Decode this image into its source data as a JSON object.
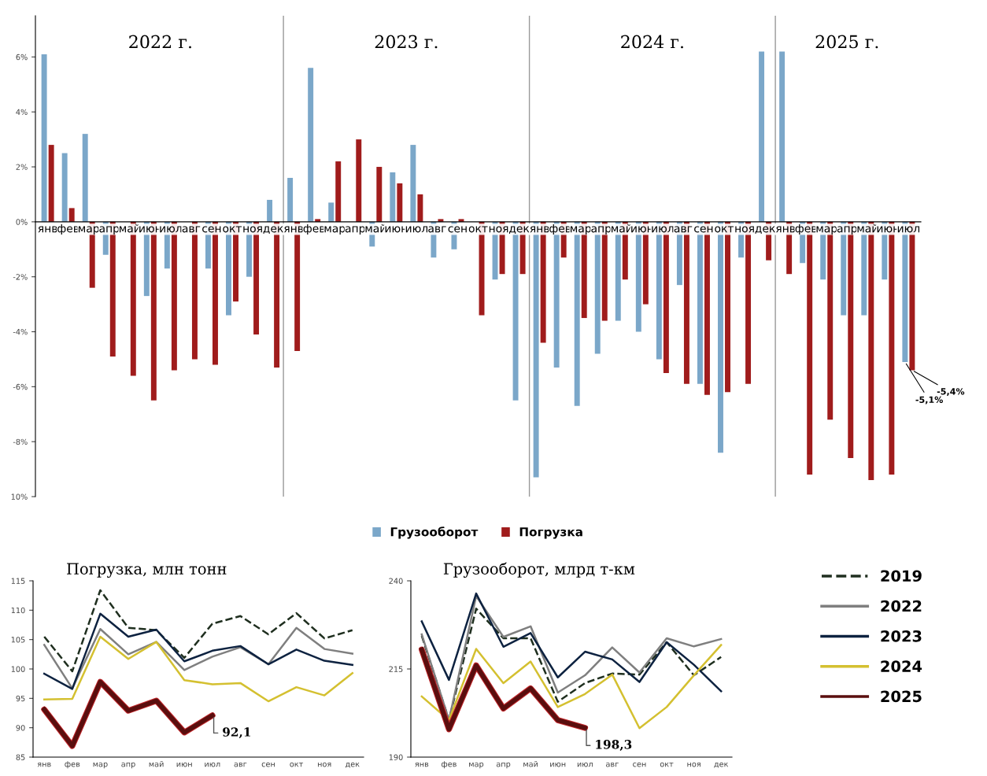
{
  "chart_data": [
    {
      "type": "bar",
      "categories": [
        "янв",
        "фев",
        "мар",
        "апр",
        "май",
        "июн",
        "июл",
        "авг",
        "сен",
        "окт",
        "ноя",
        "дек",
        "янв",
        "фев",
        "мар",
        "апр",
        "май",
        "июн",
        "июл",
        "авг",
        "сен",
        "окт",
        "ноя",
        "дек",
        "янв",
        "фев",
        "мар",
        "апр",
        "май",
        "июн",
        "июл",
        "авг",
        "сен",
        "окт",
        "ноя",
        "дек",
        "янв",
        "фев",
        "мар",
        "апр",
        "май",
        "июн",
        "июл"
      ],
      "series": [
        {
          "name": "Грузооборот",
          "color": "#7ba7c9",
          "values": [
            6.1,
            2.5,
            3.2,
            -1.2,
            null,
            -2.7,
            -1.7,
            null,
            -1.7,
            -3.4,
            -2.0,
            0.8,
            1.6,
            5.6,
            0.7,
            0.0,
            -0.9,
            1.8,
            2.8,
            -1.3,
            -1.0,
            null,
            -2.1,
            -6.5,
            -9.3,
            -5.3,
            -6.7,
            -4.8,
            -3.6,
            -4.0,
            -5.0,
            -2.3,
            -5.9,
            -8.4,
            -1.3,
            6.2,
            6.2,
            -1.5,
            -2.1,
            -3.4,
            -3.4,
            -2.1,
            -5.1
          ],
          "value_labels": [
            null,
            null,
            null,
            null,
            null,
            null,
            null,
            null,
            null,
            null,
            null,
            null,
            null,
            null,
            null,
            null,
            null,
            null,
            null,
            null,
            null,
            null,
            null,
            null,
            null,
            null,
            null,
            null,
            null,
            null,
            null,
            null,
            null,
            null,
            null,
            null,
            null,
            null,
            null,
            null,
            null,
            null,
            "-5,1%"
          ]
        },
        {
          "name": "Погрузка",
          "color": "#a01c1c",
          "values": [
            2.8,
            0.5,
            -2.4,
            -4.9,
            -5.6,
            -6.5,
            -5.4,
            -5.0,
            -5.2,
            -2.9,
            -4.1,
            -5.3,
            -4.7,
            0.1,
            2.2,
            3.0,
            2.0,
            1.4,
            1.0,
            0.1,
            0.1,
            -3.4,
            -1.9,
            -1.9,
            -4.4,
            -1.3,
            -3.5,
            -3.6,
            -2.1,
            -3.0,
            -5.5,
            -5.9,
            -6.3,
            -6.2,
            -5.9,
            -1.4,
            -1.9,
            -9.2,
            -7.2,
            -8.6,
            -9.4,
            -9.2,
            -5.4
          ],
          "value_labels": [
            null,
            null,
            null,
            null,
            null,
            null,
            null,
            null,
            null,
            null,
            null,
            null,
            null,
            null,
            null,
            null,
            null,
            null,
            null,
            null,
            null,
            null,
            null,
            null,
            null,
            null,
            null,
            null,
            null,
            null,
            null,
            null,
            null,
            null,
            null,
            null,
            null,
            null,
            null,
            null,
            null,
            null,
            "-5,4%"
          ]
        }
      ],
      "ylim": [
        -10,
        7.5
      ],
      "yticks": [
        {
          "value": -10,
          "label": "10%"
        },
        {
          "value": -8,
          "label": "-8%"
        },
        {
          "value": -6,
          "label": "-6%"
        },
        {
          "value": -4,
          "label": "-4%"
        },
        {
          "value": -2,
          "label": "-2%"
        },
        {
          "value": 0,
          "label": "0%"
        },
        {
          "value": 2,
          "label": "2%"
        },
        {
          "value": 4,
          "label": "4%"
        },
        {
          "value": 6,
          "label": "6%"
        }
      ],
      "annotations": [
        "2022 г.",
        "2023 г.",
        "2024 г.",
        "2025 г."
      ],
      "legend": "bottom",
      "grid": false
    },
    {
      "type": "line",
      "title": "Погрузка, млн тонн",
      "categories": [
        "янв",
        "фев",
        "мар",
        "апр",
        "май",
        "июн",
        "июл",
        "авг",
        "сен",
        "окт",
        "ноя",
        "дек"
      ],
      "series": [
        {
          "name": "2019",
          "color": "#1f2f1f",
          "line_style": "dashed",
          "values": [
            105.5,
            99.6,
            113.4,
            107.0,
            106.6,
            101.9,
            107.7,
            109.0,
            105.9,
            109.5,
            105.2,
            106.6
          ]
        },
        {
          "name": "2022",
          "color": "#7f7f7f",
          "values": [
            104.1,
            96.7,
            106.8,
            102.5,
            104.6,
            99.8,
            102.1,
            103.7,
            100.8,
            107.0,
            103.4,
            102.6
          ]
        },
        {
          "name": "2023",
          "color": "#0d2240",
          "values": [
            99.2,
            96.6,
            109.4,
            105.5,
            106.7,
            101.3,
            103.1,
            103.9,
            100.8,
            103.3,
            101.4,
            100.7
          ]
        },
        {
          "name": "2024",
          "color": "#d4c030",
          "values": [
            94.8,
            94.9,
            105.5,
            101.7,
            104.6,
            98.1,
            97.4,
            97.6,
            94.5,
            96.9,
            95.5,
            99.3
          ]
        },
        {
          "name": "2025",
          "color": "#5a0e0e",
          "values": [
            93.1,
            86.9,
            97.8,
            92.9,
            94.6,
            89.2,
            92.1,
            null,
            null,
            null,
            null,
            null
          ]
        }
      ],
      "ylim": [
        85,
        115
      ],
      "yticks": [
        85,
        90,
        95,
        100,
        105,
        110,
        115
      ],
      "annotations": [
        {
          "text": "92,1",
          "x": "июл",
          "y": 92.1
        }
      ],
      "legend": "right",
      "grid": false
    },
    {
      "type": "line",
      "title": "Грузооборот, млрд т-км",
      "categories": [
        "янв",
        "фев",
        "мар",
        "апр",
        "май",
        "июн",
        "июл",
        "авг",
        "сен",
        "окт",
        "ноя",
        "дек"
      ],
      "series": [
        {
          "name": "2019",
          "color": "#1f2f1f",
          "line_style": "dashed",
          "values": [
            224.4,
            200.5,
            232.1,
            223.7,
            223.7,
            205.7,
            211.0,
            213.7,
            213.4,
            222.6,
            213.2,
            218.4
          ]
        },
        {
          "name": "2022",
          "color": "#7f7f7f",
          "values": [
            224.8,
            200.5,
            235.7,
            224.1,
            227.1,
            208.3,
            213.2,
            221.1,
            214.0,
            223.7,
            221.4,
            223.5
          ]
        },
        {
          "name": "2023",
          "color": "#0d2240",
          "values": [
            228.5,
            211.9,
            236.4,
            221.3,
            225.2,
            212.6,
            219.9,
            217.7,
            211.3,
            222.6,
            216.2,
            208.7
          ]
        },
        {
          "name": "2024",
          "color": "#d4c030",
          "values": [
            207.2,
            200.5,
            220.7,
            211.0,
            217.1,
            204.2,
            207.9,
            213.4,
            198.2,
            204.2,
            213.2,
            221.8
          ]
        },
        {
          "name": "2025",
          "color": "#5a0e0e",
          "values": [
            220.5,
            197.9,
            216.0,
            203.8,
            209.5,
            200.5,
            198.3,
            null,
            null,
            null,
            null,
            null
          ]
        }
      ],
      "ylim": [
        190,
        240
      ],
      "yticks": [
        190,
        215,
        240
      ],
      "annotations": [
        {
          "text": "198,3",
          "x": "июл",
          "y": 198.3
        }
      ],
      "legend": "right",
      "grid": false
    }
  ]
}
